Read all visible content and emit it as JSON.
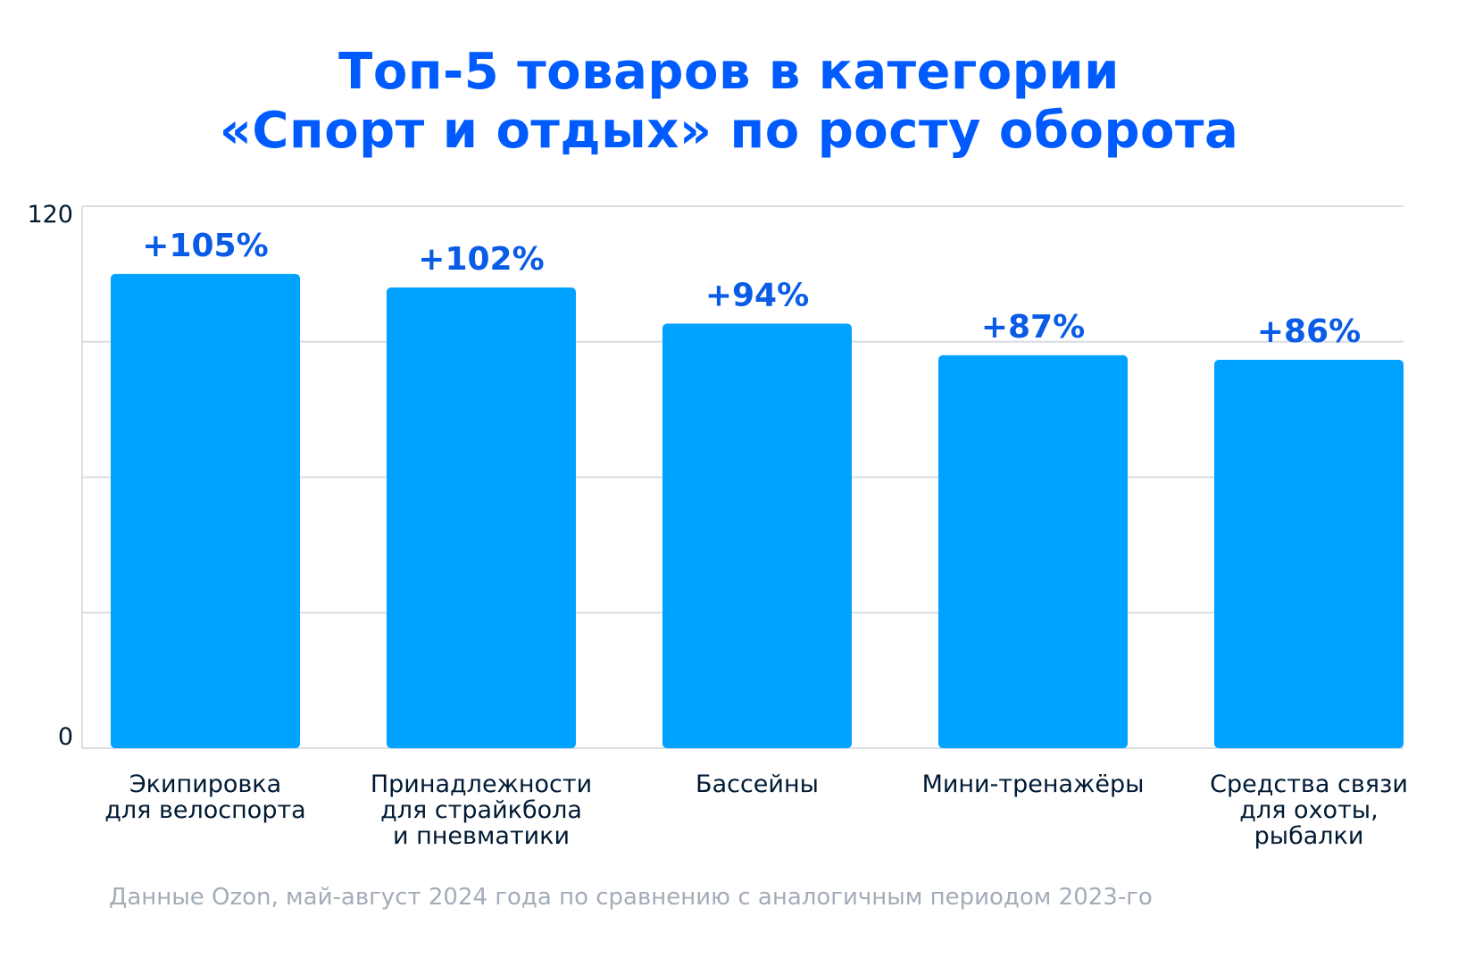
{
  "title": {
    "line1": "Топ-5 товаров в категории",
    "line2": "«Спорт и отдых» по росту оборота"
  },
  "note": "Данные Ozon, май-август 2024 года по сравнению с аналогичным периодом 2023-го",
  "colors": {
    "title": "#005bff",
    "bar": "#00a2ff",
    "value_label": "#0a5ce6",
    "category_label": "#001a34",
    "grid": "#d9dde3",
    "axis_text": "#001a34",
    "note": "#a3acb8"
  },
  "chart_data": {
    "type": "bar",
    "categories": [
      [
        "Экипировка",
        "для велоспорта"
      ],
      [
        "Принадлежности",
        "для страйкбола",
        "и пневматики"
      ],
      [
        "Бассейны"
      ],
      [
        "Мини-тренажёры"
      ],
      [
        "Средства связи",
        "для охоты,",
        "рыбалки"
      ]
    ],
    "values": [
      105,
      102,
      94,
      87,
      86
    ],
    "value_labels": [
      "+105%",
      "+102%",
      "+94%",
      "+87%",
      "+86%"
    ],
    "ylim": [
      0,
      120
    ],
    "yticks_labeled": [
      0,
      120
    ],
    "grid": true,
    "title": "",
    "xlabel": "",
    "ylabel": ""
  }
}
